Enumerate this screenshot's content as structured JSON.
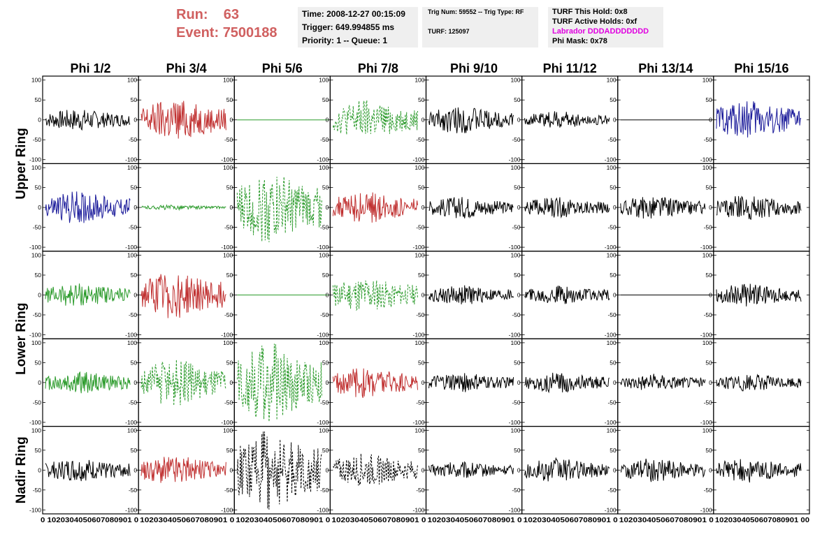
{
  "header": {
    "run_label": "Run:",
    "run_value": "63",
    "event_label": "Event:",
    "event_value": "7500188",
    "time": "Time: 2008-12-27 00:15:09",
    "trigger": "Trigger: 649.994855 ms",
    "priority": "Priority: 1 -- Queue: 1",
    "trig_num": "Trig Num: 59552 -- Trig Type: RF",
    "turf": "TURF: 125097",
    "turf_this_hold": "TURF This Hold: 0x8",
    "turf_active_holds": "TURF Active Holds: 0xf",
    "labrador": "Labrador DDDADDDDDDD",
    "phi_mask": "Phi Mask: 0x78"
  },
  "colors": {
    "run_text": "#d06060",
    "labrador": "#e000e0",
    "black": "#000000",
    "red": "#c03030",
    "green": "#2a9a2a",
    "blue": "#1a1a9a"
  },
  "columns": [
    "Phi 1/2",
    "Phi 3/4",
    "Phi 5/6",
    "Phi 7/8",
    "Phi 9/10",
    "Phi 11/12",
    "Phi 13/14",
    "Phi 15/16"
  ],
  "rings": [
    "Upper Ring",
    "Lower Ring",
    "Nadir Ring"
  ],
  "chart_data": {
    "type": "line",
    "ylim": [
      -110,
      110
    ],
    "y_ticks": [
      "100",
      "50",
      "0",
      "-50",
      "-100"
    ],
    "xlim": [
      0,
      100
    ],
    "x_ticks_first": "0 10 20 30 40 50 60 70 80 90 100",
    "x_tick_labels": [
      "0",
      "10",
      "20",
      "30",
      "40",
      "50",
      "60",
      "70",
      "80",
      "90",
      "100"
    ],
    "x_tick_strings": [
      "0 1020304050607080901 0",
      "1020304050607080901 0",
      "1020304050607080901 0",
      "1020304050607080901 0",
      "1020304050607080901 0",
      "1020304050607080901 0",
      "1020304050607080901 0",
      "1020304050607080901 00"
    ],
    "grid": false,
    "panels": [
      {
        "row": 0,
        "col": 0,
        "color": "black",
        "dashed": false,
        "amplitude": 28,
        "flat": false
      },
      {
        "row": 0,
        "col": 1,
        "color": "red",
        "dashed": false,
        "amplitude": 55,
        "flat": false
      },
      {
        "row": 0,
        "col": 2,
        "color": "green",
        "dashed": false,
        "amplitude": 0,
        "flat": true
      },
      {
        "row": 0,
        "col": 3,
        "color": "green",
        "dashed": true,
        "amplitude": 50,
        "flat": false
      },
      {
        "row": 0,
        "col": 4,
        "color": "black",
        "dashed": false,
        "amplitude": 35,
        "flat": false
      },
      {
        "row": 0,
        "col": 5,
        "color": "black",
        "dashed": false,
        "amplitude": 22,
        "flat": false
      },
      {
        "row": 0,
        "col": 6,
        "color": "black",
        "dashed": false,
        "amplitude": 0,
        "flat": true
      },
      {
        "row": 0,
        "col": 7,
        "color": "blue",
        "dashed": false,
        "amplitude": 50,
        "flat": false
      },
      {
        "row": 1,
        "col": 0,
        "color": "blue",
        "dashed": false,
        "amplitude": 42,
        "flat": false
      },
      {
        "row": 1,
        "col": 1,
        "color": "green",
        "dashed": false,
        "amplitude": 6,
        "flat": false
      },
      {
        "row": 1,
        "col": 2,
        "color": "green",
        "dashed": true,
        "amplitude": 90,
        "flat": false
      },
      {
        "row": 1,
        "col": 3,
        "color": "red",
        "dashed": false,
        "amplitude": 40,
        "flat": false
      },
      {
        "row": 1,
        "col": 4,
        "color": "black",
        "dashed": false,
        "amplitude": 28,
        "flat": false
      },
      {
        "row": 1,
        "col": 5,
        "color": "black",
        "dashed": false,
        "amplitude": 26,
        "flat": false
      },
      {
        "row": 1,
        "col": 6,
        "color": "black",
        "dashed": false,
        "amplitude": 30,
        "flat": false
      },
      {
        "row": 1,
        "col": 7,
        "color": "black",
        "dashed": false,
        "amplitude": 32,
        "flat": false
      },
      {
        "row": 2,
        "col": 0,
        "color": "green",
        "dashed": false,
        "amplitude": 30,
        "flat": false
      },
      {
        "row": 2,
        "col": 1,
        "color": "red",
        "dashed": false,
        "amplitude": 60,
        "flat": false
      },
      {
        "row": 2,
        "col": 2,
        "color": "green",
        "dashed": false,
        "amplitude": 0,
        "flat": true
      },
      {
        "row": 2,
        "col": 3,
        "color": "green",
        "dashed": true,
        "amplitude": 45,
        "flat": false
      },
      {
        "row": 2,
        "col": 4,
        "color": "black",
        "dashed": false,
        "amplitude": 25,
        "flat": false
      },
      {
        "row": 2,
        "col": 5,
        "color": "black",
        "dashed": false,
        "amplitude": 24,
        "flat": false
      },
      {
        "row": 2,
        "col": 6,
        "color": "black",
        "dashed": false,
        "amplitude": 0,
        "flat": true
      },
      {
        "row": 2,
        "col": 7,
        "color": "black",
        "dashed": false,
        "amplitude": 30,
        "flat": false
      },
      {
        "row": 3,
        "col": 0,
        "color": "green",
        "dashed": false,
        "amplitude": 30,
        "flat": false
      },
      {
        "row": 3,
        "col": 1,
        "color": "green",
        "dashed": true,
        "amplitude": 60,
        "flat": false
      },
      {
        "row": 3,
        "col": 2,
        "color": "green",
        "dashed": true,
        "amplitude": 100,
        "flat": false
      },
      {
        "row": 3,
        "col": 3,
        "color": "red",
        "dashed": false,
        "amplitude": 40,
        "flat": false
      },
      {
        "row": 3,
        "col": 4,
        "color": "black",
        "dashed": false,
        "amplitude": 25,
        "flat": false
      },
      {
        "row": 3,
        "col": 5,
        "color": "black",
        "dashed": false,
        "amplitude": 26,
        "flat": false
      },
      {
        "row": 3,
        "col": 6,
        "color": "black",
        "dashed": false,
        "amplitude": 22,
        "flat": false
      },
      {
        "row": 3,
        "col": 7,
        "color": "black",
        "dashed": false,
        "amplitude": 22,
        "flat": false
      },
      {
        "row": 4,
        "col": 0,
        "color": "black",
        "dashed": false,
        "amplitude": 30,
        "flat": false
      },
      {
        "row": 4,
        "col": 1,
        "color": "red",
        "dashed": false,
        "amplitude": 38,
        "flat": false
      },
      {
        "row": 4,
        "col": 2,
        "color": "black",
        "dashed": true,
        "amplitude": 100,
        "flat": false
      },
      {
        "row": 4,
        "col": 3,
        "color": "black",
        "dashed": true,
        "amplitude": 42,
        "flat": false
      },
      {
        "row": 4,
        "col": 4,
        "color": "black",
        "dashed": false,
        "amplitude": 22,
        "flat": false
      },
      {
        "row": 4,
        "col": 5,
        "color": "black",
        "dashed": false,
        "amplitude": 30,
        "flat": false
      },
      {
        "row": 4,
        "col": 6,
        "color": "black",
        "dashed": false,
        "amplitude": 30,
        "flat": false
      },
      {
        "row": 4,
        "col": 7,
        "color": "black",
        "dashed": false,
        "amplitude": 32,
        "flat": false
      }
    ]
  }
}
